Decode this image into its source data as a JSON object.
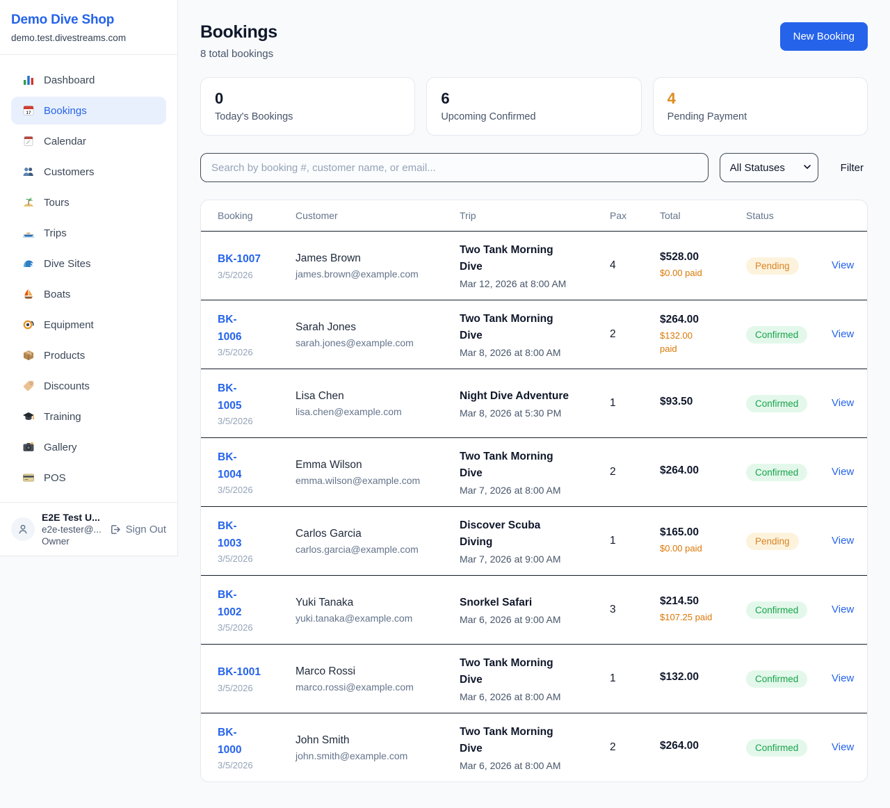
{
  "colors": {
    "accent": "#2563eb",
    "pending_text": "#d97706",
    "pending_bg": "#fdf3dd",
    "confirmed_text": "#18a34a",
    "confirmed_bg": "#e3f8eb",
    "stat_alert": "#dd8b1e"
  },
  "sidebar": {
    "brand": "Demo Dive Shop",
    "domain": "demo.test.divestreams.com",
    "items": [
      {
        "icon": "bar-chart-icon",
        "label": "Dashboard",
        "active": false
      },
      {
        "icon": "calendar-icon",
        "label": "Bookings",
        "active": true
      },
      {
        "icon": "tearoff-calendar-icon",
        "label": "Calendar",
        "active": false
      },
      {
        "icon": "people-icon",
        "label": "Customers",
        "active": false
      },
      {
        "icon": "island-icon",
        "label": "Tours",
        "active": false
      },
      {
        "icon": "speedboat-icon",
        "label": "Trips",
        "active": false
      },
      {
        "icon": "wave-icon",
        "label": "Dive Sites",
        "active": false
      },
      {
        "icon": "sailboat-icon",
        "label": "Boats",
        "active": false
      },
      {
        "icon": "dive-mask-icon",
        "label": "Equipment",
        "active": false
      },
      {
        "icon": "package-icon",
        "label": "Products",
        "active": false
      },
      {
        "icon": "tag-icon",
        "label": "Discounts",
        "active": false
      },
      {
        "icon": "graduation-cap-icon",
        "label": "Training",
        "active": false
      },
      {
        "icon": "camera-icon",
        "label": "Gallery",
        "active": false
      },
      {
        "icon": "credit-card-icon",
        "label": "POS",
        "active": false
      }
    ],
    "user": {
      "name": "E2E Test U...",
      "email": "e2e-tester@...",
      "role": "Owner",
      "sign_out_label": "Sign Out"
    }
  },
  "header": {
    "title": "Bookings",
    "subtitle": "8 total bookings",
    "new_booking_label": "New Booking"
  },
  "stats": [
    {
      "value": "0",
      "label": "Today's Bookings",
      "alert": false
    },
    {
      "value": "6",
      "label": "Upcoming Confirmed",
      "alert": false
    },
    {
      "value": "4",
      "label": "Pending Payment",
      "alert": true
    }
  ],
  "filters": {
    "search_placeholder": "Search by booking #, customer name, or email...",
    "status_selected": "All Statuses",
    "filter_label": "Filter"
  },
  "table": {
    "columns": [
      "Booking",
      "Customer",
      "Trip",
      "Pax",
      "Total",
      "Status"
    ],
    "rows": [
      {
        "id": "BK-1007",
        "date": "3/5/2026",
        "customer": "James Brown",
        "email": "james.brown@example.com",
        "trip": "Two Tank Morning\nDive",
        "trip_time": "Mar 12, 2026 at 8:00 AM",
        "pax": "4",
        "total": "$528.00",
        "paid": "$0.00 paid",
        "status": "Pending",
        "action": "View"
      },
      {
        "id": "BK-\n1006",
        "date": "3/5/2026",
        "customer": "Sarah Jones",
        "email": "sarah.jones@example.com",
        "trip": "Two Tank Morning\nDive",
        "trip_time": "Mar 8, 2026 at 8:00 AM",
        "pax": "2",
        "total": "$264.00",
        "paid": "$132.00\npaid",
        "status": "Confirmed",
        "action": "View"
      },
      {
        "id": "BK-\n1005",
        "date": "3/5/2026",
        "customer": "Lisa Chen",
        "email": "lisa.chen@example.com",
        "trip": "Night Dive Adventure",
        "trip_time": "Mar 8, 2026 at 5:30 PM",
        "pax": "1",
        "total": "$93.50",
        "paid": "",
        "status": "Confirmed",
        "action": "View"
      },
      {
        "id": "BK-\n1004",
        "date": "3/5/2026",
        "customer": "Emma Wilson",
        "email": "emma.wilson@example.com",
        "trip": "Two Tank Morning\nDive",
        "trip_time": "Mar 7, 2026 at 8:00 AM",
        "pax": "2",
        "total": "$264.00",
        "paid": "",
        "status": "Confirmed",
        "action": "View"
      },
      {
        "id": "BK-\n1003",
        "date": "3/5/2026",
        "customer": "Carlos Garcia",
        "email": "carlos.garcia@example.com",
        "trip": "Discover Scuba\nDiving",
        "trip_time": "Mar 7, 2026 at 9:00 AM",
        "pax": "1",
        "total": "$165.00",
        "paid": "$0.00 paid",
        "status": "Pending",
        "action": "View"
      },
      {
        "id": "BK-\n1002",
        "date": "3/5/2026",
        "customer": "Yuki Tanaka",
        "email": "yuki.tanaka@example.com",
        "trip": "Snorkel Safari",
        "trip_time": "Mar 6, 2026 at 9:00 AM",
        "pax": "3",
        "total": "$214.50",
        "paid": "$107.25 paid",
        "status": "Confirmed",
        "action": "View"
      },
      {
        "id": "BK-1001",
        "date": "3/5/2026",
        "customer": "Marco Rossi",
        "email": "marco.rossi@example.com",
        "trip": "Two Tank Morning\nDive",
        "trip_time": "Mar 6, 2026 at 8:00 AM",
        "pax": "1",
        "total": "$132.00",
        "paid": "",
        "status": "Confirmed",
        "action": "View"
      },
      {
        "id": "BK-\n1000",
        "date": "3/5/2026",
        "customer": "John Smith",
        "email": "john.smith@example.com",
        "trip": "Two Tank Morning\nDive",
        "trip_time": "Mar 6, 2026 at 8:00 AM",
        "pax": "2",
        "total": "$264.00",
        "paid": "",
        "status": "Confirmed",
        "action": "View"
      }
    ]
  }
}
